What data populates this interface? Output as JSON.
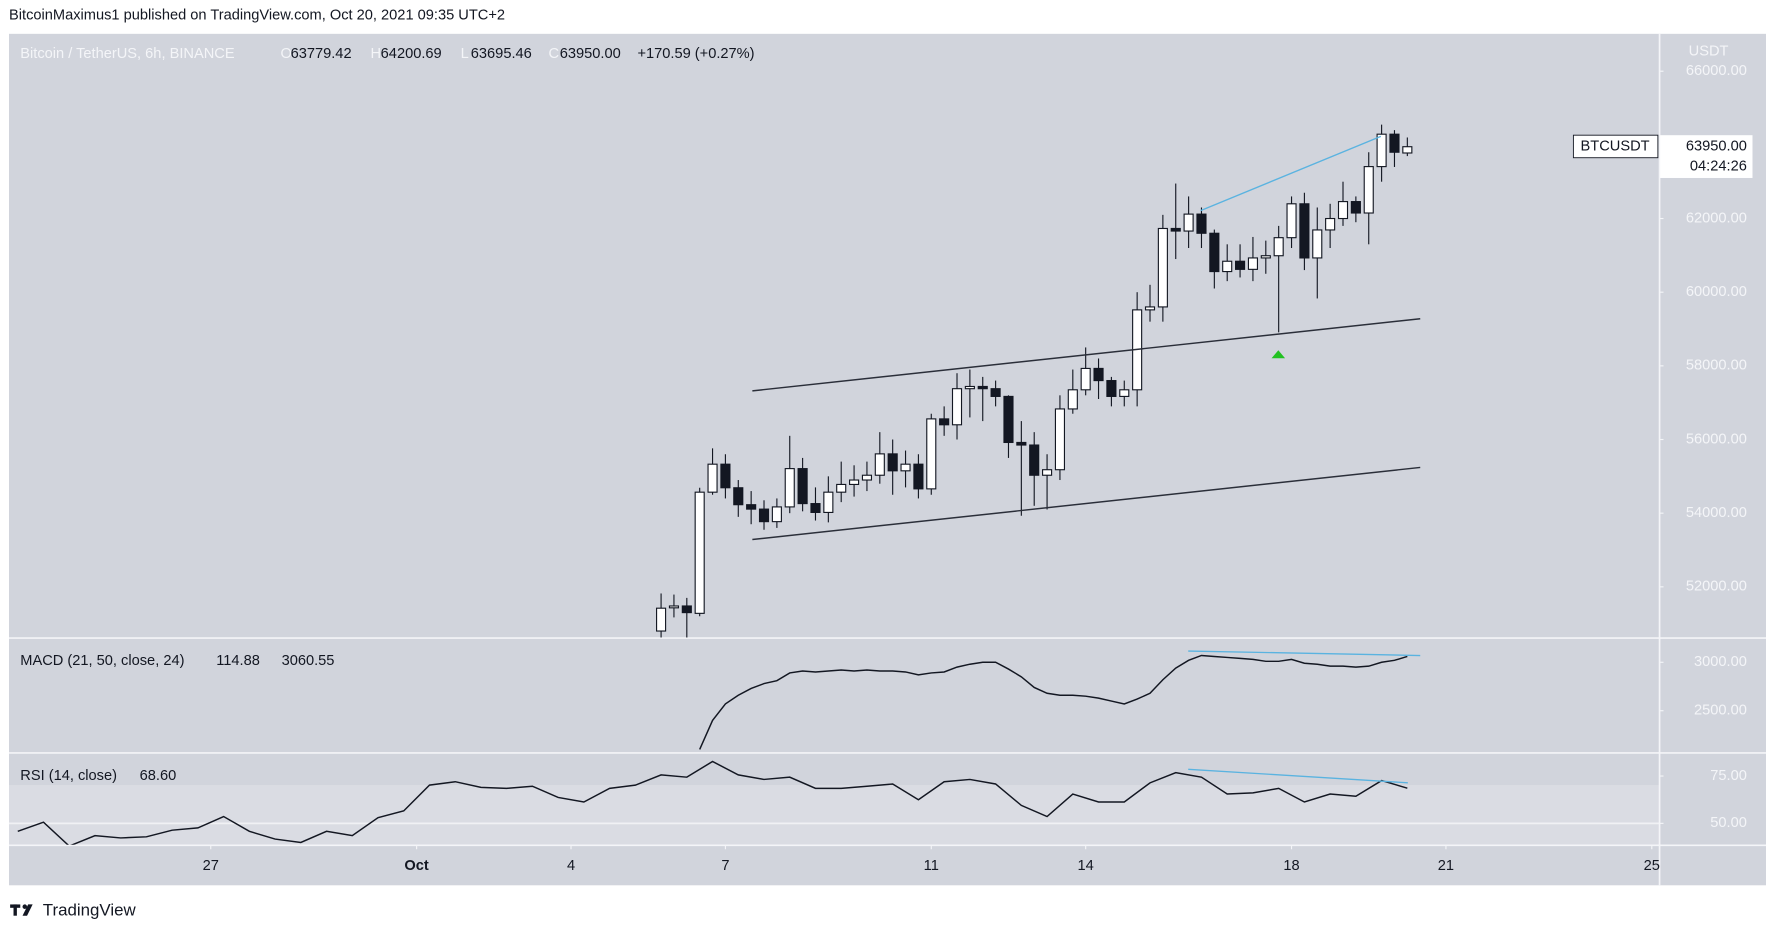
{
  "header": {
    "text": "BitcoinMaximus1 published on TradingView.com, Oct 20, 2021 09:35 UTC+2"
  },
  "footer": {
    "brand": "TradingView"
  },
  "legend": {
    "symbol": "Bitcoin / TetherUS, 6h, BINANCE",
    "o_label": "O",
    "open": "63779.42",
    "h_label": "H",
    "high": "64200.69",
    "l_label": "L",
    "low": "63695.46",
    "c_label": "C",
    "close": "63950.00",
    "change": "+170.59 (+0.27%)"
  },
  "price_tag": {
    "symbol": "BTCUSDT",
    "price": "63950.00",
    "countdown": "04:24:26"
  },
  "chart_data": [
    {
      "type": "candlestick",
      "axis_label": "USDT",
      "up_color": "#ffffff",
      "down_color": "#131722",
      "x": [
        5.75,
        6,
        6.25,
        6.5,
        6.75,
        7,
        7.25,
        7.5,
        7.75,
        8,
        8.25,
        8.5,
        8.75,
        9,
        9.25,
        9.5,
        9.75,
        10,
        10.25,
        10.5,
        10.75,
        11,
        11.25,
        11.5,
        11.75,
        12,
        12.25,
        12.5,
        12.75,
        13,
        13.25,
        13.5,
        13.75,
        14,
        14.25,
        14.5,
        14.75,
        15,
        15.25,
        15.5,
        15.75,
        16,
        16.25,
        16.5,
        16.75,
        17,
        17.25,
        17.5,
        17.75,
        18,
        18.25,
        18.5,
        18.75,
        19,
        19.25,
        19.5,
        19.75,
        20,
        20.25
      ],
      "open": [
        50800,
        51430,
        51480,
        51280,
        54570,
        55330,
        54690,
        54230,
        54110,
        53770,
        54170,
        55210,
        54260,
        54020,
        54570,
        54780,
        54900,
        55030,
        55610,
        55150,
        55330,
        54660,
        56560,
        56400,
        57380,
        57440,
        57380,
        57170,
        55920,
        55850,
        55030,
        55180,
        56830,
        57350,
        57930,
        57600,
        57170,
        57350,
        59520,
        59600,
        61730,
        61660,
        62120,
        61600,
        60560,
        60840,
        60620,
        60930,
        60990,
        61480,
        62400,
        60930,
        61690,
        62000,
        62460,
        62150,
        63410,
        64290,
        63779.42
      ],
      "high": [
        51820,
        51790,
        51700,
        54690,
        55760,
        55600,
        54900,
        54600,
        54350,
        54400,
        56100,
        55500,
        54700,
        55000,
        55400,
        55300,
        55400,
        56200,
        56000,
        55700,
        55600,
        56700,
        56900,
        57800,
        57900,
        57700,
        57600,
        57200,
        56500,
        56200,
        55600,
        57200,
        57900,
        58500,
        58200,
        57700,
        57600,
        60000,
        60200,
        62100,
        62950,
        62600,
        62300,
        61700,
        61300,
        61300,
        61500,
        61400,
        61800,
        62600,
        62700,
        62300,
        62400,
        63000,
        62600,
        63800,
        64550,
        64400,
        64200.69
      ],
      "low": [
        50500,
        51170,
        50600,
        51200,
        54500,
        54400,
        53900,
        53700,
        53550,
        53600,
        54000,
        54050,
        53800,
        53750,
        54300,
        54450,
        54600,
        54800,
        54500,
        54700,
        54400,
        54500,
        56100,
        56000,
        56600,
        56500,
        56900,
        55500,
        53930,
        54200,
        54100,
        54900,
        56700,
        57200,
        57100,
        56900,
        56900,
        56900,
        59200,
        59200,
        60900,
        61200,
        61200,
        60100,
        60300,
        60400,
        60300,
        60500,
        58910,
        61200,
        60600,
        59830,
        61200,
        61800,
        61900,
        61300,
        63000,
        63400,
        63695.46
      ],
      "close": [
        51420,
        51480,
        51300,
        54570,
        55330,
        54690,
        54230,
        54110,
        53770,
        54170,
        55210,
        54260,
        54020,
        54570,
        54780,
        54900,
        55030,
        55610,
        55150,
        55330,
        54660,
        56560,
        56400,
        57380,
        57440,
        57380,
        57170,
        55920,
        55850,
        55030,
        55180,
        56830,
        57350,
        57930,
        57600,
        57170,
        57350,
        59520,
        59600,
        61730,
        61660,
        62120,
        61600,
        60560,
        60840,
        60620,
        60930,
        60990,
        61480,
        62400,
        60930,
        61690,
        62000,
        62460,
        62150,
        63410,
        64290,
        63800,
        63950
      ],
      "xlim": [
        -6.92,
        25.14
      ],
      "xticks": [
        {
          "value": -3,
          "label": "27"
        },
        {
          "value": 1,
          "label": "Oct"
        },
        4,
        7,
        11,
        14,
        18,
        21,
        25
      ],
      "ylim": [
        50624,
        67015
      ],
      "yticks": [
        {
          "value": 52000,
          "label": "52000.00"
        },
        {
          "value": 54000,
          "label": "54000.00"
        },
        {
          "value": 56000,
          "label": "56000.00"
        },
        {
          "value": 58000,
          "label": "58000.00"
        },
        {
          "value": 60000,
          "label": "60000.00"
        },
        {
          "value": 62000,
          "label": "62000.00"
        },
        {
          "value": 66000,
          "label": "66000.00"
        }
      ]
    },
    {
      "type": "line",
      "title": "MACD (21, 50, close, 24)",
      "legend_values": [
        "114.88",
        "3060.55"
      ],
      "color": "#131722",
      "x": [
        6.5,
        6.75,
        7,
        7.25,
        7.5,
        7.75,
        8,
        8.25,
        8.5,
        8.75,
        9,
        9.25,
        9.5,
        9.75,
        10,
        10.25,
        10.5,
        10.75,
        11,
        11.25,
        11.5,
        11.75,
        12,
        12.25,
        12.5,
        12.75,
        13,
        13.25,
        13.5,
        13.75,
        14,
        14.25,
        14.5,
        14.75,
        15,
        15.25,
        15.5,
        15.75,
        16,
        16.25,
        16.5,
        16.75,
        17,
        17.25,
        17.5,
        17.75,
        18,
        18.25,
        18.5,
        18.75,
        19,
        19.25,
        19.5,
        19.75,
        20,
        20.25
      ],
      "values": [
        2100,
        2400,
        2570,
        2660,
        2730,
        2780,
        2810,
        2890,
        2910,
        2900,
        2910,
        2920,
        2910,
        2920,
        2910,
        2910,
        2900,
        2870,
        2890,
        2900,
        2950,
        2980,
        3000,
        3000,
        2930,
        2850,
        2740,
        2680,
        2660,
        2660,
        2650,
        2630,
        2600,
        2570,
        2620,
        2680,
        2820,
        2940,
        3020,
        3070,
        3060,
        3050,
        3040,
        3030,
        3010,
        3010,
        3030,
        2990,
        2980,
        2960,
        2960,
        2950,
        2960,
        3000,
        3020,
        3060
      ],
      "xlim": [
        -6.92,
        25.14
      ],
      "ylim": [
        2070,
        3244
      ],
      "yticks": [
        {
          "value": 3000,
          "label": "3000.00"
        },
        {
          "value": 2500,
          "label": "2500.00"
        }
      ]
    },
    {
      "type": "line",
      "title": "RSI (14, close)",
      "legend_values": [
        "68.60"
      ],
      "color": "#131722",
      "x": [
        -6.75,
        -6.25,
        -5.75,
        -5.25,
        -4.75,
        -4.25,
        -3.75,
        -3.25,
        -2.75,
        -2.25,
        -1.75,
        -1.25,
        -0.75,
        -0.25,
        0.25,
        0.75,
        1.25,
        1.75,
        2.25,
        2.75,
        3.25,
        3.75,
        4.25,
        4.75,
        5.25,
        5.75,
        6.25,
        6.75,
        7.25,
        7.75,
        8.25,
        8.75,
        9.25,
        9.75,
        10.25,
        10.75,
        11.25,
        11.75,
        12.25,
        12.75,
        13.25,
        13.75,
        14.25,
        14.75,
        15.25,
        15.75,
        16.25,
        16.75,
        17.25,
        17.75,
        18.25,
        18.75,
        19.25,
        19.75,
        20.25
      ],
      "values": [
        45.8,
        50.6,
        38,
        43.5,
        42.3,
        42.9,
        46.4,
        47.6,
        53.6,
        45.8,
        41.7,
        39.9,
        45.8,
        43.5,
        53,
        56.6,
        70.2,
        72,
        69,
        68.5,
        69.6,
        63.7,
        61.3,
        68.5,
        70.2,
        75.6,
        74.4,
        82.7,
        75.6,
        73.2,
        74.4,
        68.5,
        68.5,
        69.6,
        70.8,
        62.5,
        72,
        73.2,
        70.8,
        59.5,
        53.6,
        65.5,
        61.3,
        61.3,
        71.4,
        76.8,
        74.4,
        65.5,
        66.1,
        68.5,
        61.3,
        65.5,
        64.3,
        72.6,
        68.6
      ],
      "xlim": [
        -6.92,
        25.14
      ],
      "ylim": [
        38.7,
        86.9
      ],
      "yticks": [
        {
          "value": 75,
          "label": "75.00"
        },
        {
          "value": 50,
          "label": "50.00"
        }
      ]
    }
  ]
}
